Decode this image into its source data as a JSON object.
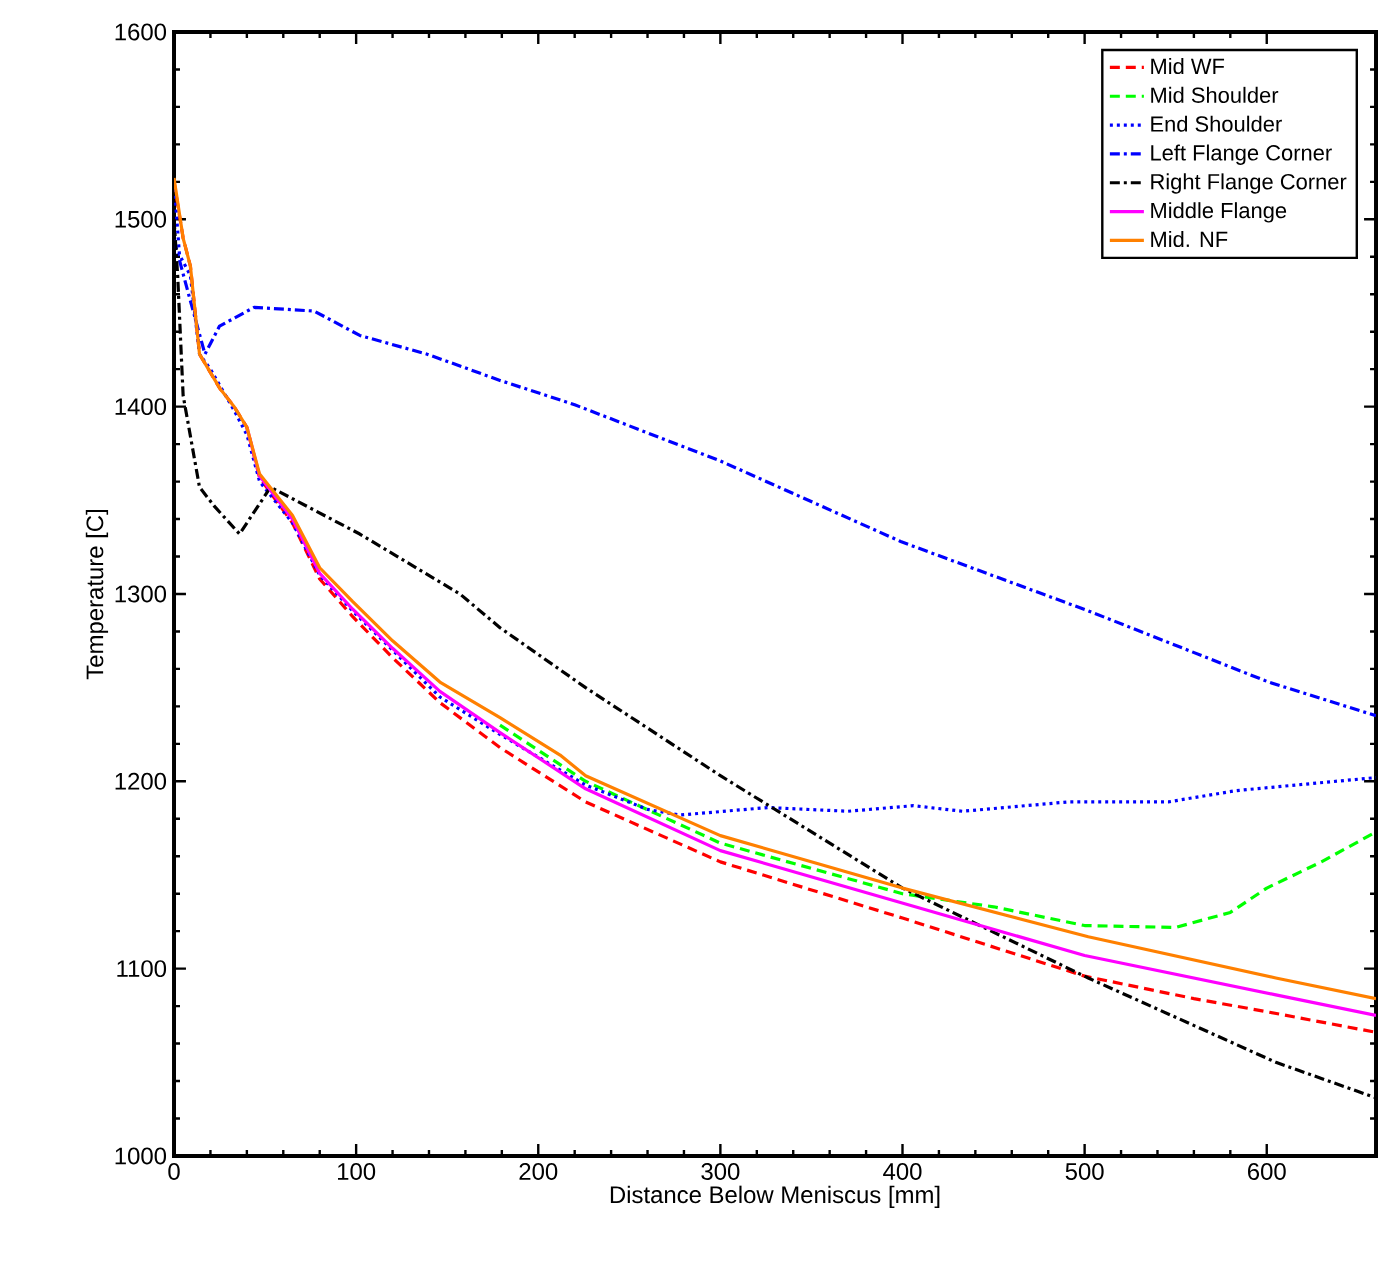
{
  "chart_data": {
    "type": "line",
    "xlabel": "Distance Below Meniscus [mm]",
    "ylabel": "Temperature [C]",
    "xlim": [
      0,
      660
    ],
    "ylim": [
      1000,
      1600
    ],
    "xticks": [
      0,
      100,
      200,
      300,
      400,
      500,
      600
    ],
    "yticks": [
      1000,
      1100,
      1200,
      1300,
      1400,
      1500,
      1600
    ],
    "grid": false,
    "legend": "top right",
    "marker": "none",
    "series": [
      {
        "name": "Mid WF",
        "color": "#ff0000",
        "line_style": "dashed",
        "x": [
          0,
          5,
          9,
          14,
          25,
          33,
          40,
          47,
          65,
          80,
          98,
          120,
          146,
          179,
          226,
          300,
          400,
          500,
          560,
          600,
          660
        ],
        "values": [
          1520,
          1490,
          1475,
          1428,
          1410,
          1400,
          1389,
          1362,
          1338,
          1308,
          1288,
          1266,
          1242,
          1218,
          1189,
          1157,
          1127,
          1096,
          1084,
          1077,
          1066
        ]
      },
      {
        "name": "Mid Shoulder",
        "color": "#00ff00",
        "line_style": "dashed",
        "x": [
          179,
          226,
          300,
          400,
          450,
          500,
          550,
          580,
          600,
          630,
          660
        ],
        "values": [
          1230,
          1200,
          1167,
          1140,
          1133,
          1123,
          1122,
          1130,
          1143,
          1157,
          1173
        ]
      },
      {
        "name": "End Shoulder",
        "color": "#0000ff",
        "line_style": "dotted",
        "x": [
          0,
          3,
          9,
          14,
          20,
          33,
          40,
          47,
          65,
          80,
          98,
          120,
          146,
          179,
          226,
          260,
          278,
          326,
          370,
          406,
          433,
          491,
          546,
          583,
          660
        ],
        "values": [
          1520,
          1481,
          1470,
          1428,
          1420,
          1398,
          1385,
          1360,
          1338,
          1310,
          1291,
          1270,
          1245,
          1225,
          1198,
          1185,
          1182,
          1186,
          1184,
          1187,
          1184,
          1189,
          1189,
          1195,
          1202
        ]
      },
      {
        "name": "Left Flange Corner",
        "color": "#0000ff",
        "line_style": "dashdot",
        "x": [
          0,
          8,
          17,
          25,
          44,
          77,
          102,
          139,
          179,
          220,
          300,
          399,
          502,
          601,
          660
        ],
        "values": [
          1489,
          1460,
          1428,
          1443,
          1453,
          1451,
          1438,
          1428,
          1414,
          1401,
          1371,
          1328,
          1291,
          1253,
          1235
        ]
      },
      {
        "name": "Right Flange Corner",
        "color": "#000000",
        "line_style": "dashdot",
        "x": [
          0,
          2,
          5,
          14,
          22,
          36,
          53,
          102,
          157,
          179,
          226,
          300,
          400,
          502,
          605,
          660
        ],
        "values": [
          1500,
          1470,
          1406,
          1357,
          1347,
          1332,
          1357,
          1332,
          1300,
          1282,
          1250,
          1203,
          1143,
          1095,
          1050,
          1031
        ]
      },
      {
        "name": "Middle Flange",
        "color": "#ff00ff",
        "line_style": "solid",
        "x": [
          40,
          47,
          65,
          80,
          98,
          120,
          146,
          179,
          226,
          300,
          400,
          500,
          605,
          660
        ],
        "values": [
          1389,
          1363,
          1340,
          1311,
          1292,
          1271,
          1248,
          1226,
          1196,
          1163,
          1135,
          1107,
          1086,
          1075
        ]
      },
      {
        "name": "Mid. NF",
        "color": "#ff8000",
        "line_style": "solid",
        "x": [
          0,
          5,
          9,
          14,
          25,
          33,
          40,
          47,
          65,
          80,
          98,
          120,
          146,
          179,
          212,
          226,
          300,
          400,
          502,
          605,
          660
        ],
        "values": [
          1522,
          1490,
          1475,
          1428,
          1410,
          1400,
          1389,
          1364,
          1342,
          1314,
          1296,
          1275,
          1253,
          1234,
          1214,
          1203,
          1171,
          1143,
          1117,
          1095,
          1084
        ]
      }
    ]
  }
}
